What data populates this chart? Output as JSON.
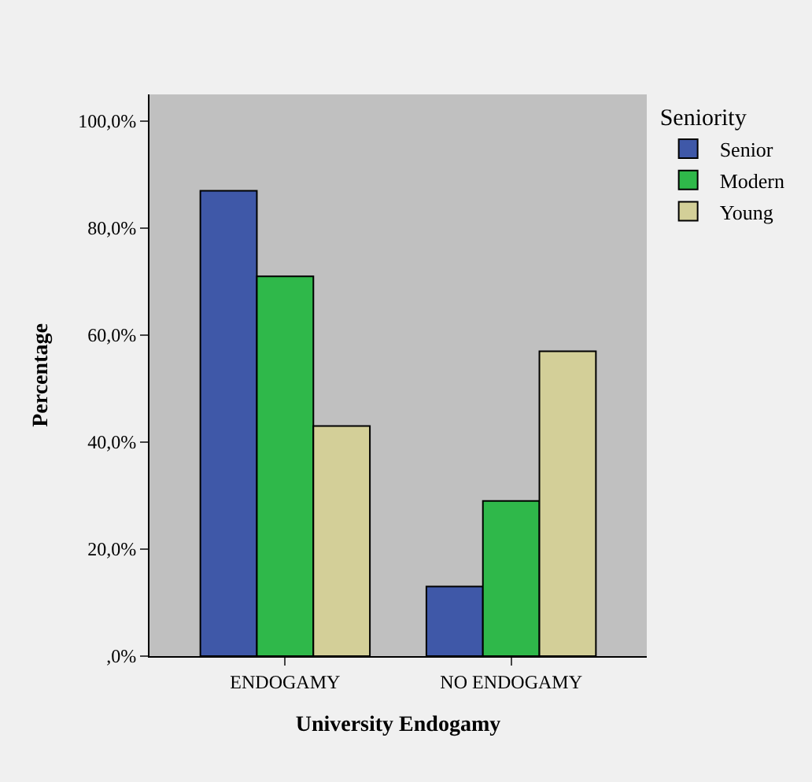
{
  "chart_data": {
    "type": "bar",
    "xlabel": "University Endogamy",
    "ylabel": "Percentage",
    "legend_title": "Seniority",
    "categories": [
      "ENDOGAMY",
      "NO ENDOGAMY"
    ],
    "series": [
      {
        "name": "Senior",
        "color": "#3f58a8",
        "values": [
          87,
          13
        ]
      },
      {
        "name": "Modern",
        "color": "#2fb84a",
        "values": [
          71,
          29
        ]
      },
      {
        "name": "Young",
        "color": "#d3cf98",
        "values": [
          43,
          57
        ]
      }
    ],
    "ylim": [
      0,
      105
    ],
    "yticks": [
      {
        "value": 0,
        "label": ",0%"
      },
      {
        "value": 20,
        "label": "20,0%"
      },
      {
        "value": 40,
        "label": "40,0%"
      },
      {
        "value": 60,
        "label": "60,0%"
      },
      {
        "value": 80,
        "label": "80,0%"
      },
      {
        "value": 100,
        "label": "100,0%"
      }
    ],
    "grid": false,
    "legend": "top right"
  }
}
